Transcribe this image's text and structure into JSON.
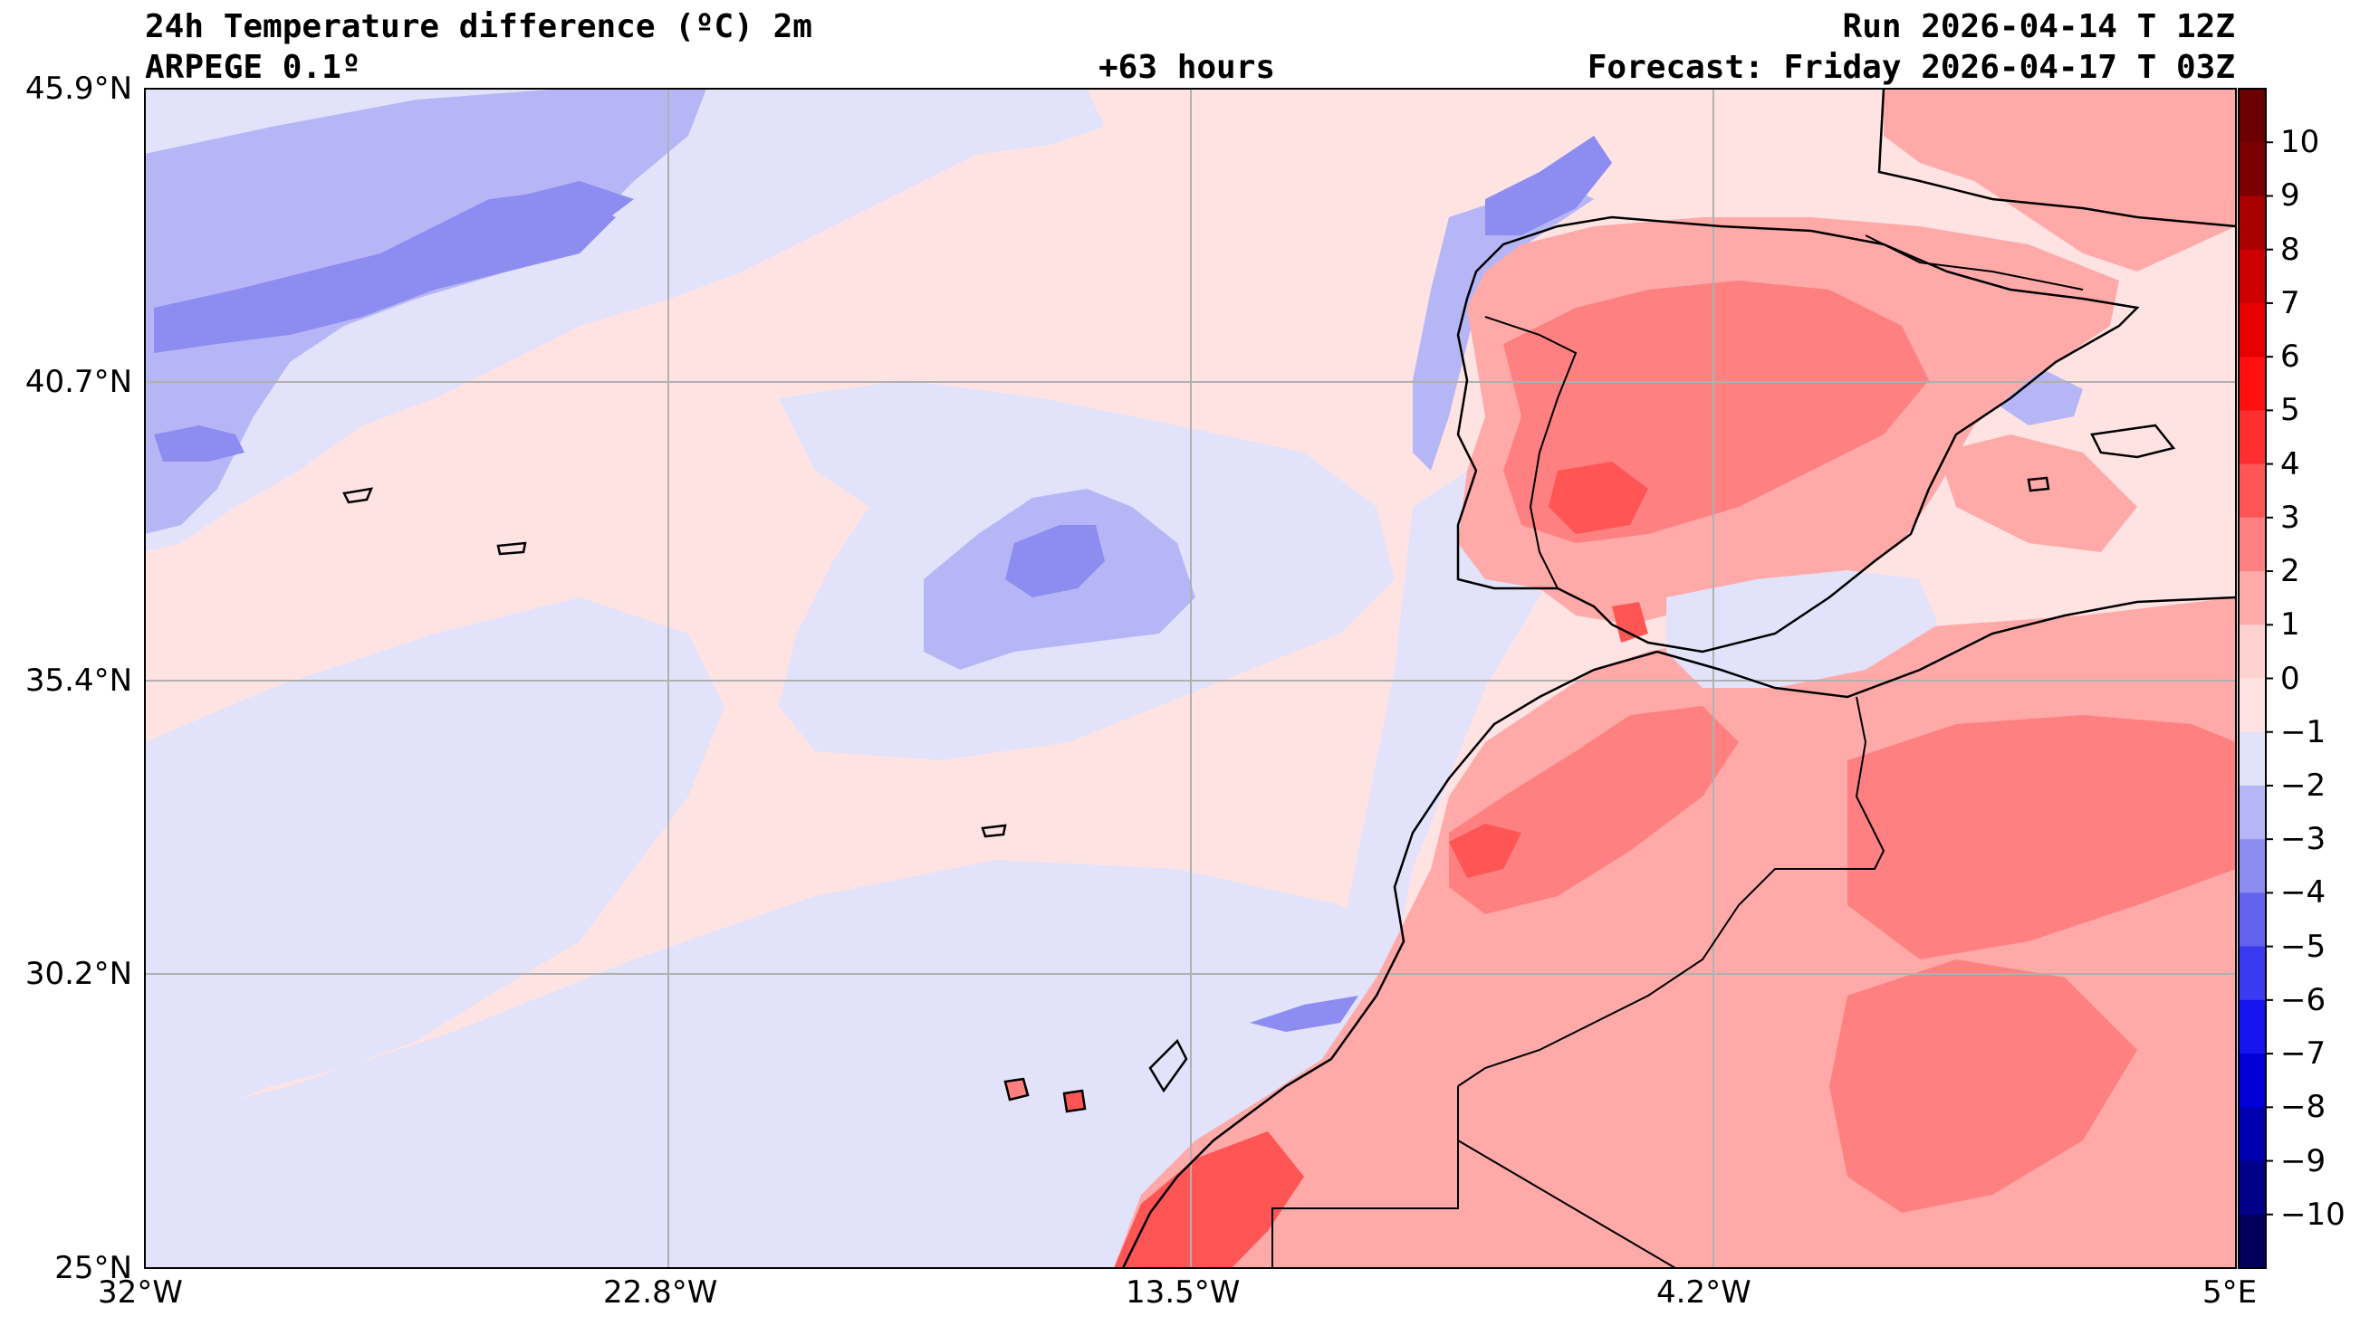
{
  "header": {
    "title": "24h Temperature difference (ºC) 2m",
    "model": "ARPEGE 0.1º",
    "lead_time": "+63 hours",
    "run": "Run 2026-04-14 T 12Z",
    "forecast": "Forecast: Friday 2026-04-17 T 03Z"
  },
  "map": {
    "region": "Iberian Peninsula, NW Africa and eastern Atlantic",
    "lon_range": [
      -32,
      5
    ],
    "lat_range": [
      25,
      45.9
    ],
    "lat_labels": [
      "45.9°N",
      "40.7°N",
      "35.4°N",
      "30.2°N",
      "25°N"
    ],
    "lon_labels": [
      "32°W",
      "22.8°W",
      "13.5°W",
      "4.2°W",
      "5°E"
    ]
  },
  "colorbar": {
    "levels": [
      "10",
      "9",
      "8",
      "7",
      "6",
      "5",
      "4",
      "3",
      "2",
      "1",
      "0",
      "−1",
      "−2",
      "−3",
      "−4",
      "−5",
      "−6",
      "−7",
      "−8",
      "−9",
      "−10"
    ],
    "colors": [
      "#7a0000",
      "#a80000",
      "#cc0000",
      "#e60000",
      "#ff0f0f",
      "#ff2f2f",
      "#ff5555",
      "#ff8080",
      "#ffa9a9",
      "#ffd2d2",
      "#ffe3e3",
      "#e2e2fb",
      "#b6b6f6",
      "#8c8cf1",
      "#6262ee",
      "#3a3af0",
      "#1414ee",
      "#0000d6",
      "#0000b0",
      "#000088",
      "#00005c"
    ]
  }
}
